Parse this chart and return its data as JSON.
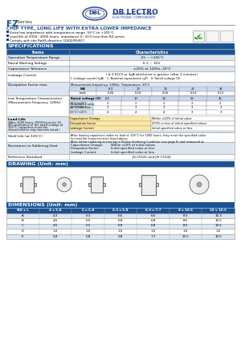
{
  "series_name": "FZ",
  "chip_type_title": "CHIP TYPE, LONG LIFE WITH EXTRA LOWER IMPEDANCE",
  "features": [
    "Extra low impedance with temperature range -55°C to +105°C",
    "Load life of 2000~3000 hours, impedance 5~21% less than RZ series",
    "Comply with the RoHS directive (2002/95/EC)"
  ],
  "spec_title": "SPECIFICATIONS",
  "drawing_title": "DRAWING (Unit: mm)",
  "dimensions_title": "DIMENSIONS (Unit: mm)",
  "dim_headers": [
    "ΦD x L",
    "4 x 5.8",
    "5 x 5.8",
    "6.3 x 5.8",
    "6.3 x 7.7",
    "8 x 10.5",
    "10 x 10.5"
  ],
  "dim_rows": [
    [
      "A",
      "4.3",
      "5.3",
      "6.6",
      "6.6",
      "8.3",
      "10.3"
    ],
    [
      "B",
      "4.5",
      "5.5",
      "6.8",
      "6.8",
      "8.5",
      "10.5"
    ],
    [
      "C",
      "4.5",
      "5.5",
      "6.8",
      "6.8",
      "8.5",
      "10.5"
    ],
    [
      "D",
      "1.0",
      "1.0",
      "1.0",
      "1.0",
      "1.0",
      "1.0"
    ],
    [
      "E",
      "5.8",
      "5.8",
      "5.8",
      "7.7",
      "10.5",
      "10.5"
    ]
  ],
  "header_bg": "#1a5296",
  "header_fg": "#ffffff",
  "row_bg_light": "#dce6f1",
  "row_bg_white": "#ffffff",
  "blue_title_bg": "#1a5296",
  "blue_title_fg": "#ffffff",
  "logo_color": "#1a3a8a",
  "series_color_FZ": "#1a5296",
  "chip_title_color": "#1a5296",
  "border_color": "#999999",
  "bg_color": "#ffffff",
  "text_color": "#000000"
}
